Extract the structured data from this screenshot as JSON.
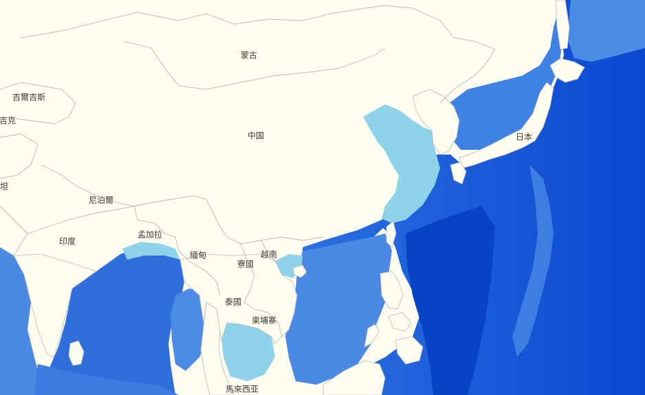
{
  "map": {
    "colors": {
      "land": "#fffdf0",
      "border": "#b8b8b8",
      "coast_shallow": "#8fd3ea",
      "shelf": "#5fa8e8",
      "ocean": "#3d7fe0",
      "deep_ocean": "#0b4fd6"
    },
    "labels": {
      "mongolia": "蒙古",
      "kyrgyzstan": "吉爾吉斯",
      "tajikistan": "吉克",
      "pakistan": "坦",
      "china": "中国",
      "nepal": "尼泊爾",
      "india": "印度",
      "bangladesh": "孟加拉",
      "myanmar": "緬甸",
      "laos": "寮國",
      "vietnam": "越南",
      "thailand": "泰國",
      "cambodia": "柬埔寨",
      "japan": "日本",
      "malaysia": "馬來西亚"
    }
  }
}
